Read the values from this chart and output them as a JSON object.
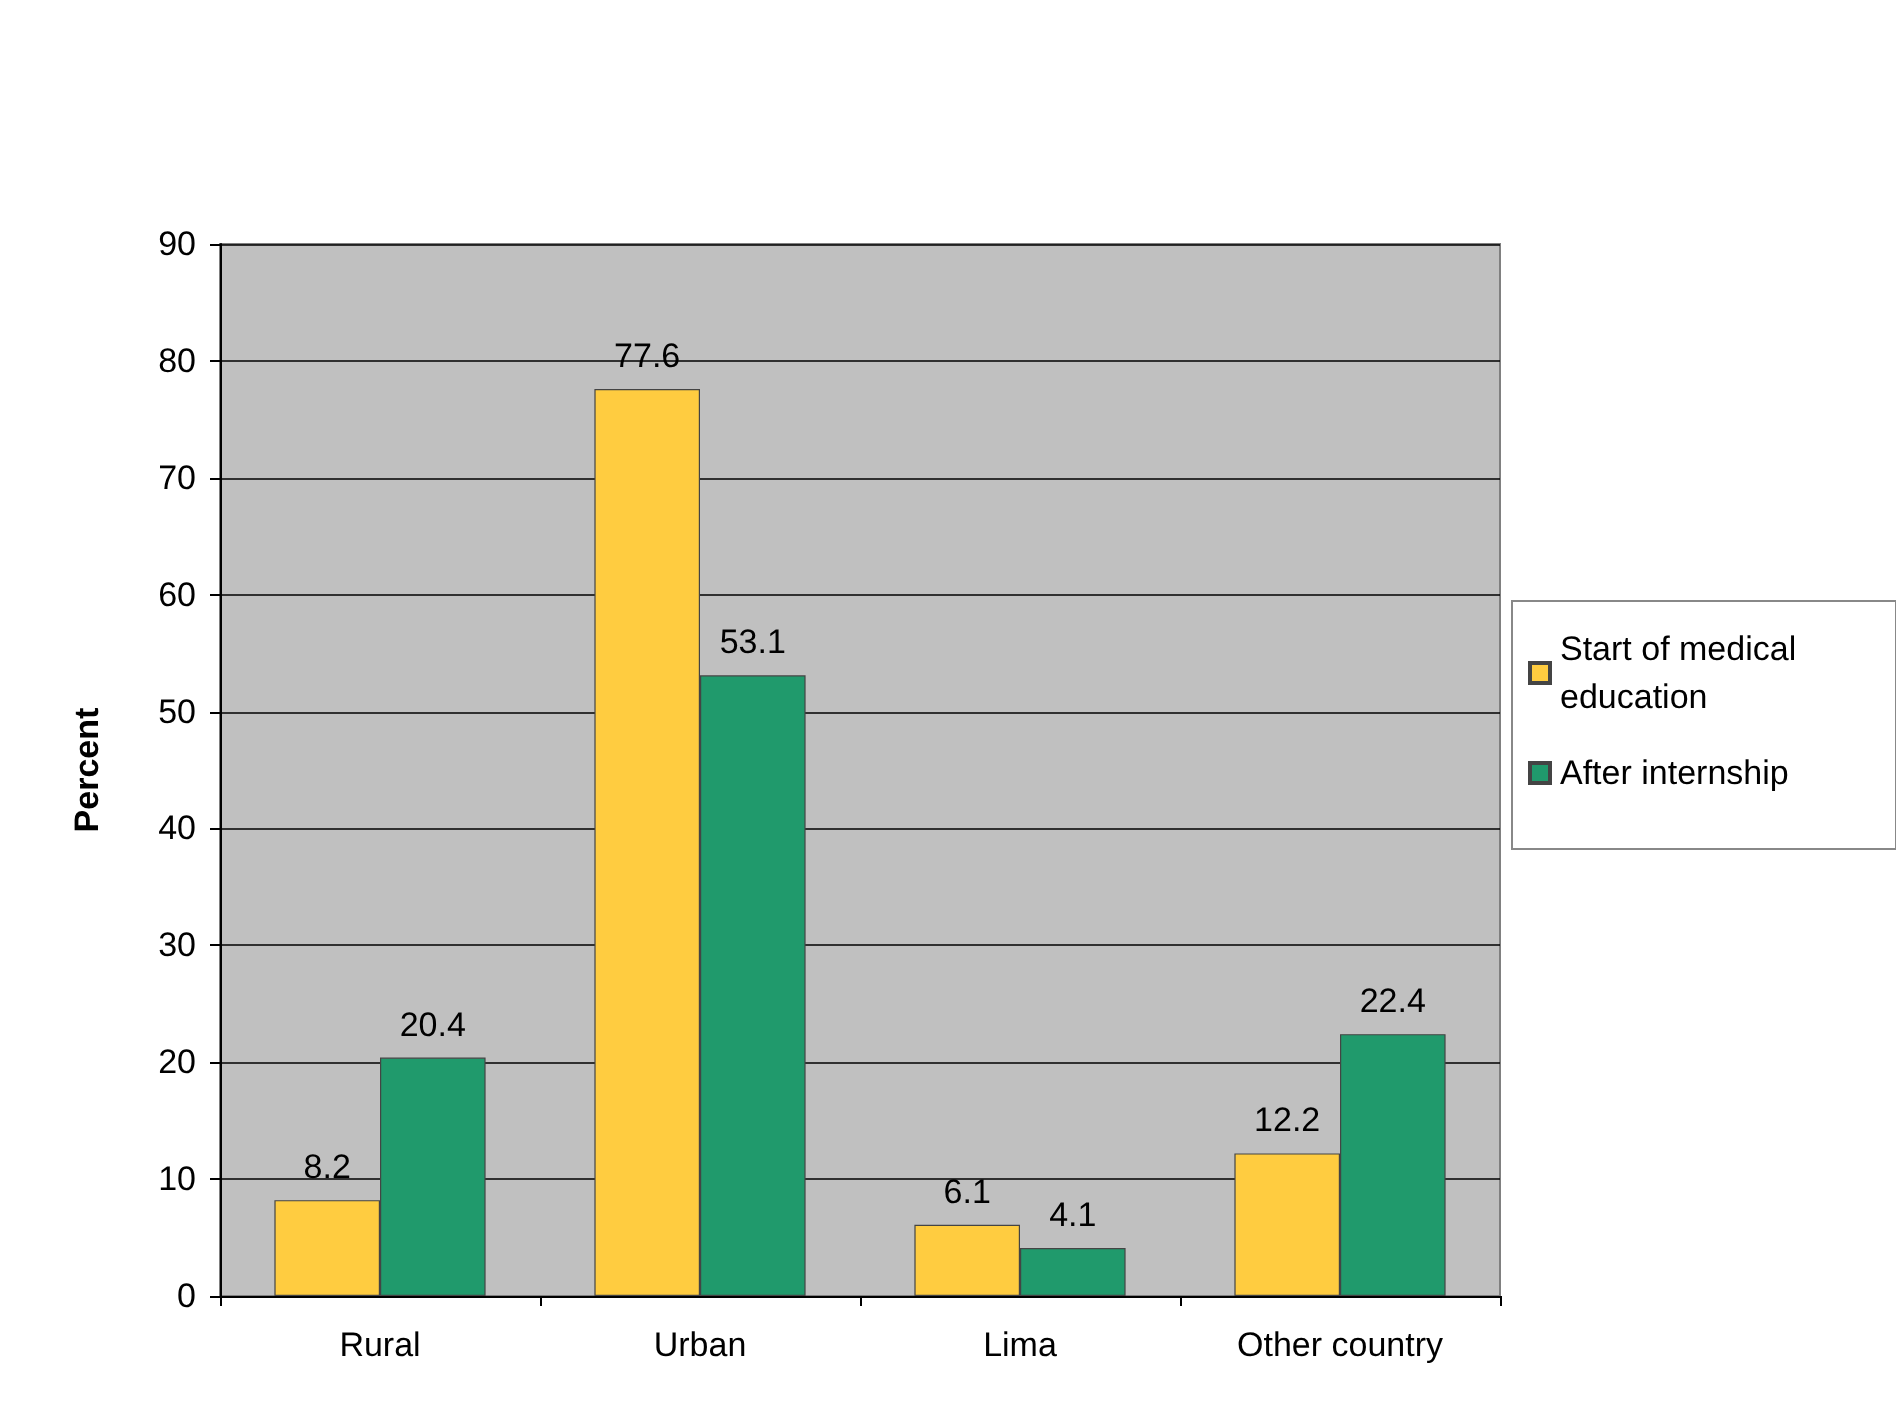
{
  "chart_data": {
    "type": "bar",
    "ylabel": "Percent",
    "categories": [
      "Rural",
      "Urban",
      "Lima",
      "Other country"
    ],
    "series": [
      {
        "name": "Start of medical education",
        "color": "#ffcc40",
        "values": [
          8.2,
          77.6,
          6.1,
          12.2
        ]
      },
      {
        "name": "After internship",
        "color": "#209a6c",
        "values": [
          20.4,
          53.1,
          4.1,
          22.4
        ]
      }
    ],
    "ylim": [
      0,
      90
    ],
    "yticks": [
      0,
      10,
      20,
      30,
      40,
      50,
      60,
      70,
      80,
      90
    ],
    "grid": "y",
    "legend": "right",
    "data_labels": true
  }
}
